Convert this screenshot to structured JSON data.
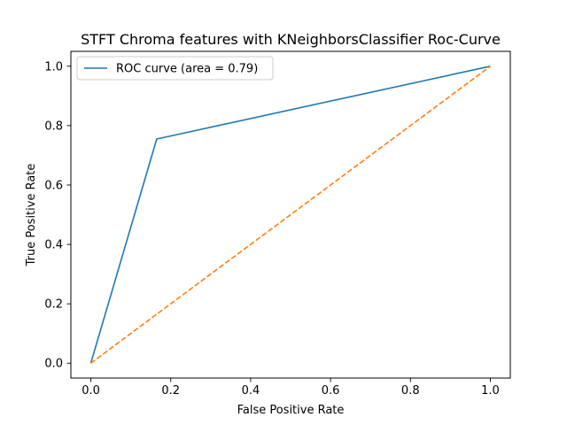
{
  "chart_data": {
    "type": "line",
    "title": "STFT Chroma features with KNeighborsClassifier Roc-Curve",
    "xlabel": "False Positive Rate",
    "ylabel": "True Positive Rate",
    "xlim": [
      -0.05,
      1.05
    ],
    "ylim": [
      -0.05,
      1.05
    ],
    "xticks": [
      "0.0",
      "0.2",
      "0.4",
      "0.6",
      "0.8",
      "1.0"
    ],
    "yticks": [
      "0.0",
      "0.2",
      "0.4",
      "0.6",
      "0.8",
      "1.0"
    ],
    "grid": false,
    "legend_position": "upper left",
    "series": [
      {
        "name": "ROC curve (area = 0.79)",
        "x": [
          0.0,
          0.165,
          1.0
        ],
        "y": [
          0.0,
          0.755,
          1.0
        ],
        "color": "#1f77b4",
        "style": "solid"
      },
      {
        "x": [
          0.0,
          1.0
        ],
        "y": [
          0.0,
          1.0
        ],
        "color": "#ff7f0e",
        "style": "dashed"
      }
    ]
  }
}
